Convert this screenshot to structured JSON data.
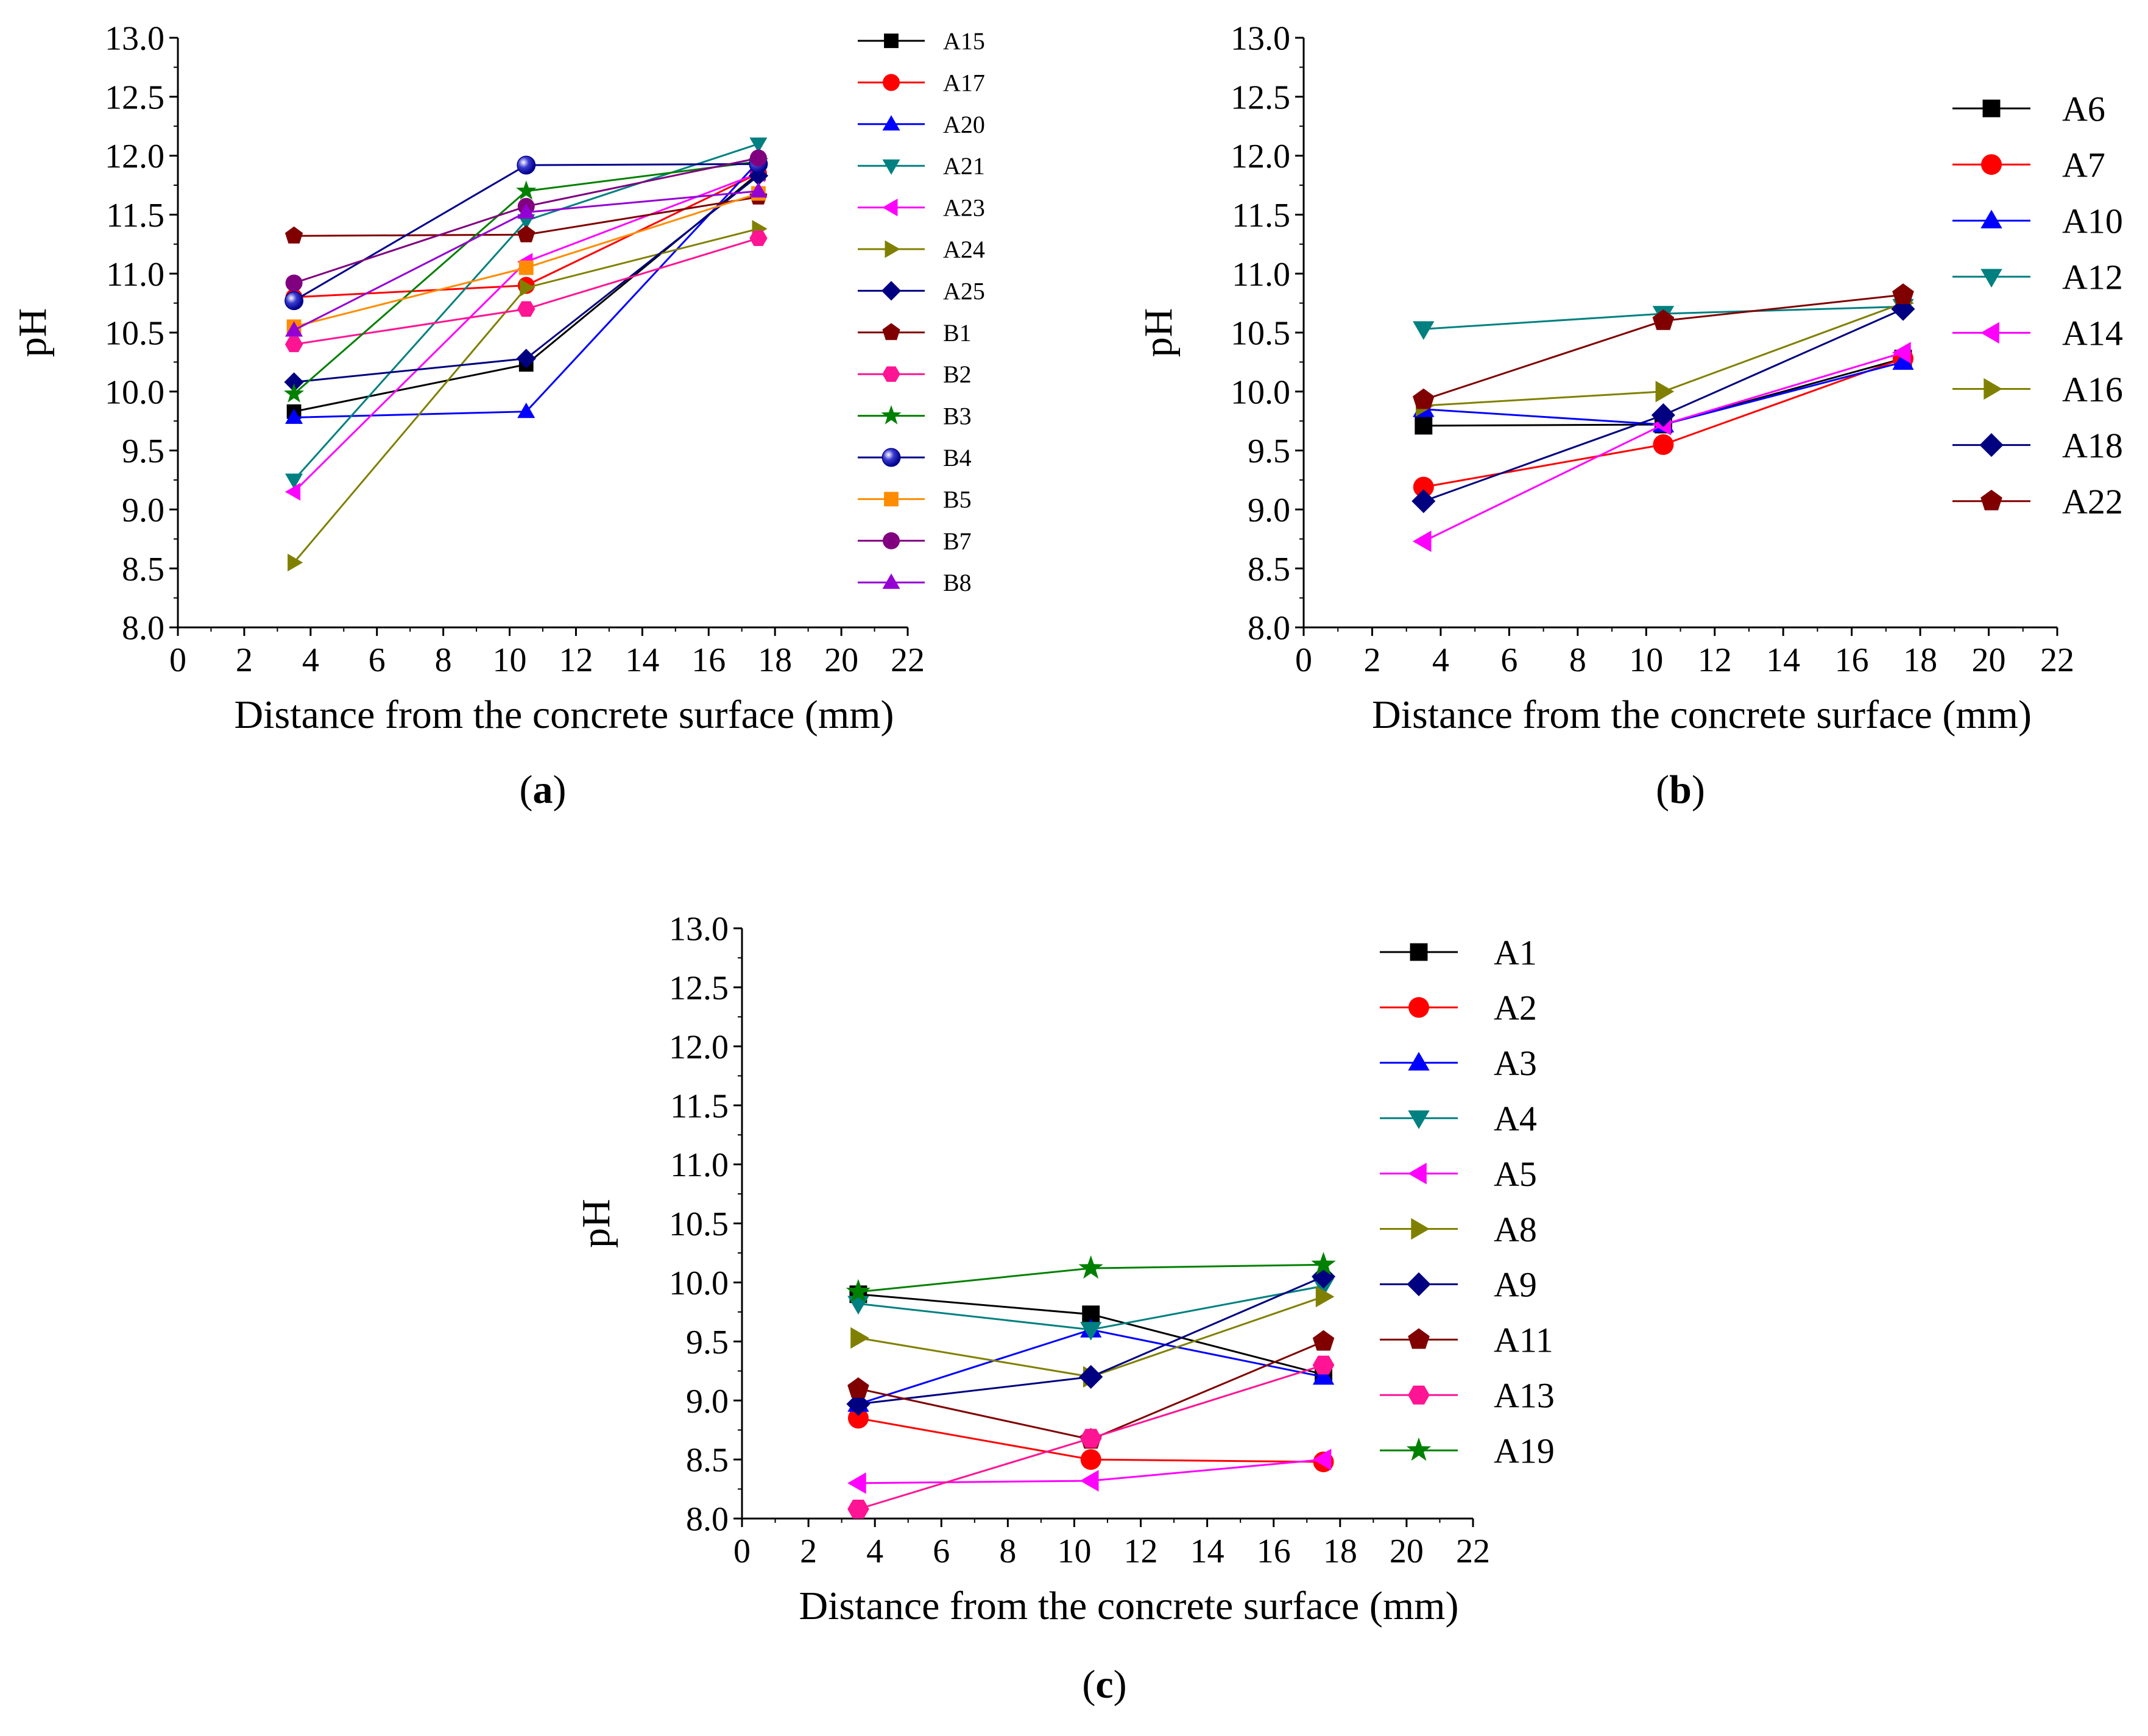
{
  "chart_data": [
    {
      "type": "line",
      "panel_label": "a",
      "xlabel": "Distance from the concrete surface (mm)",
      "ylabel": "pH",
      "xlim": [
        0,
        22
      ],
      "ylim": [
        8.0,
        13.0
      ],
      "x_ticks": [
        0,
        2,
        4,
        6,
        8,
        10,
        12,
        14,
        16,
        18,
        20,
        22
      ],
      "y_ticks": [
        "8.0",
        "8.5",
        "9.0",
        "9.5",
        "10.0",
        "10.5",
        "11.0",
        "11.5",
        "12.0",
        "12.5",
        "13.0"
      ],
      "legend_position": "top-right",
      "x": [
        3.5,
        10.5,
        17.5
      ],
      "series": [
        {
          "name": "A15",
          "color": "#000000",
          "marker": "square",
          "values": [
            9.83,
            10.23,
            11.85
          ]
        },
        {
          "name": "A17",
          "color": "#ff0000",
          "marker": "circle",
          "values": [
            10.8,
            10.9,
            11.85
          ]
        },
        {
          "name": "A20",
          "color": "#0000ff",
          "marker": "triangle-up",
          "values": [
            9.78,
            9.83,
            11.95
          ]
        },
        {
          "name": "A21",
          "color": "#008080",
          "marker": "triangle-down",
          "values": [
            9.25,
            11.45,
            12.1
          ]
        },
        {
          "name": "A23",
          "color": "#ff00ff",
          "marker": "triangle-left",
          "values": [
            9.15,
            11.1,
            11.85
          ]
        },
        {
          "name": "A24",
          "color": "#808000",
          "marker": "triangle-right",
          "values": [
            8.55,
            10.88,
            11.38
          ]
        },
        {
          "name": "A25",
          "color": "#000080",
          "marker": "diamond",
          "values": [
            10.08,
            10.28,
            11.83
          ]
        },
        {
          "name": "B1",
          "color": "#800000",
          "marker": "pentagon",
          "values": [
            11.32,
            11.33,
            11.65
          ]
        },
        {
          "name": "B2",
          "color": "#ff1493",
          "marker": "hexagon",
          "values": [
            10.4,
            10.7,
            11.3
          ]
        },
        {
          "name": "B3",
          "color": "#008000",
          "marker": "star",
          "values": [
            9.98,
            11.7,
            11.95
          ]
        },
        {
          "name": "B4",
          "color": "#00008b",
          "marker": "sphere",
          "values": [
            10.77,
            11.92,
            11.93
          ]
        },
        {
          "name": "B5",
          "color": "#ff8c00",
          "marker": "square",
          "values": [
            10.55,
            11.05,
            11.68
          ]
        },
        {
          "name": "B7",
          "color": "#800080",
          "marker": "circle",
          "values": [
            10.92,
            11.57,
            11.98
          ]
        },
        {
          "name": "B8",
          "color": "#9400d3",
          "marker": "triangle-up",
          "values": [
            10.52,
            11.52,
            11.7
          ]
        }
      ]
    },
    {
      "type": "line",
      "panel_label": "b",
      "xlabel": "Distance from the concrete surface (mm)",
      "ylabel": "pH",
      "xlim": [
        0,
        22
      ],
      "ylim": [
        8.0,
        13.0
      ],
      "x_ticks": [
        0,
        2,
        4,
        6,
        8,
        10,
        12,
        14,
        16,
        18,
        20,
        22
      ],
      "y_ticks": [
        "8.0",
        "8.5",
        "9.0",
        "9.5",
        "10.0",
        "10.5",
        "11.0",
        "11.5",
        "12.0",
        "12.5",
        "13.0"
      ],
      "legend_position": "top-right",
      "x": [
        3.5,
        10.5,
        17.5
      ],
      "series": [
        {
          "name": "A6",
          "color": "#000000",
          "marker": "square",
          "values": [
            9.71,
            9.72,
            10.28
          ]
        },
        {
          "name": "A7",
          "color": "#ff0000",
          "marker": "circle",
          "values": [
            9.19,
            9.55,
            10.28
          ]
        },
        {
          "name": "A10",
          "color": "#0000ff",
          "marker": "triangle-up",
          "values": [
            9.85,
            9.72,
            10.25
          ]
        },
        {
          "name": "A12",
          "color": "#008080",
          "marker": "triangle-down",
          "values": [
            10.53,
            10.66,
            10.72
          ]
        },
        {
          "name": "A14",
          "color": "#ff00ff",
          "marker": "triangle-left",
          "values": [
            8.73,
            9.72,
            10.33
          ]
        },
        {
          "name": "A16",
          "color": "#808000",
          "marker": "triangle-right",
          "values": [
            9.88,
            10.0,
            10.75
          ]
        },
        {
          "name": "A18",
          "color": "#000080",
          "marker": "diamond",
          "values": [
            9.07,
            9.8,
            10.7
          ]
        },
        {
          "name": "A22",
          "color": "#800000",
          "marker": "pentagon",
          "values": [
            9.93,
            10.6,
            10.82
          ]
        }
      ]
    },
    {
      "type": "line",
      "panel_label": "c",
      "xlabel": "Distance from the concrete surface (mm)",
      "ylabel": "pH",
      "xlim": [
        0,
        22
      ],
      "ylim": [
        8.0,
        13.0
      ],
      "x_ticks": [
        0,
        2,
        4,
        6,
        8,
        10,
        12,
        14,
        16,
        18,
        20,
        22
      ],
      "y_ticks": [
        "8.0",
        "8.5",
        "9.0",
        "9.5",
        "10.0",
        "10.5",
        "11.0",
        "11.5",
        "12.0",
        "12.5",
        "13.0"
      ],
      "legend_position": "top-right",
      "x": [
        3.5,
        10.5,
        17.5
      ],
      "series": [
        {
          "name": "A1",
          "color": "#000000",
          "marker": "square",
          "values": [
            9.9,
            9.73,
            9.22
          ]
        },
        {
          "name": "A2",
          "color": "#ff0000",
          "marker": "circle",
          "values": [
            8.85,
            8.5,
            8.48
          ]
        },
        {
          "name": "A3",
          "color": "#0000ff",
          "marker": "triangle-up",
          "values": [
            8.97,
            9.6,
            9.2
          ]
        },
        {
          "name": "A4",
          "color": "#008080",
          "marker": "triangle-down",
          "values": [
            9.82,
            9.6,
            9.97
          ]
        },
        {
          "name": "A5",
          "color": "#ff00ff",
          "marker": "triangle-left",
          "values": [
            8.3,
            8.32,
            8.5
          ]
        },
        {
          "name": "A8",
          "color": "#808000",
          "marker": "triangle-right",
          "values": [
            9.53,
            9.2,
            9.88
          ]
        },
        {
          "name": "A9",
          "color": "#000080",
          "marker": "diamond",
          "values": [
            8.97,
            9.2,
            10.05
          ]
        },
        {
          "name": "A11",
          "color": "#800000",
          "marker": "pentagon",
          "values": [
            9.1,
            8.67,
            9.5
          ]
        },
        {
          "name": "A13",
          "color": "#ff1493",
          "marker": "hexagon",
          "values": [
            8.08,
            8.68,
            9.3
          ]
        },
        {
          "name": "A19",
          "color": "#008000",
          "marker": "star",
          "values": [
            9.92,
            10.12,
            10.15
          ]
        }
      ]
    }
  ]
}
